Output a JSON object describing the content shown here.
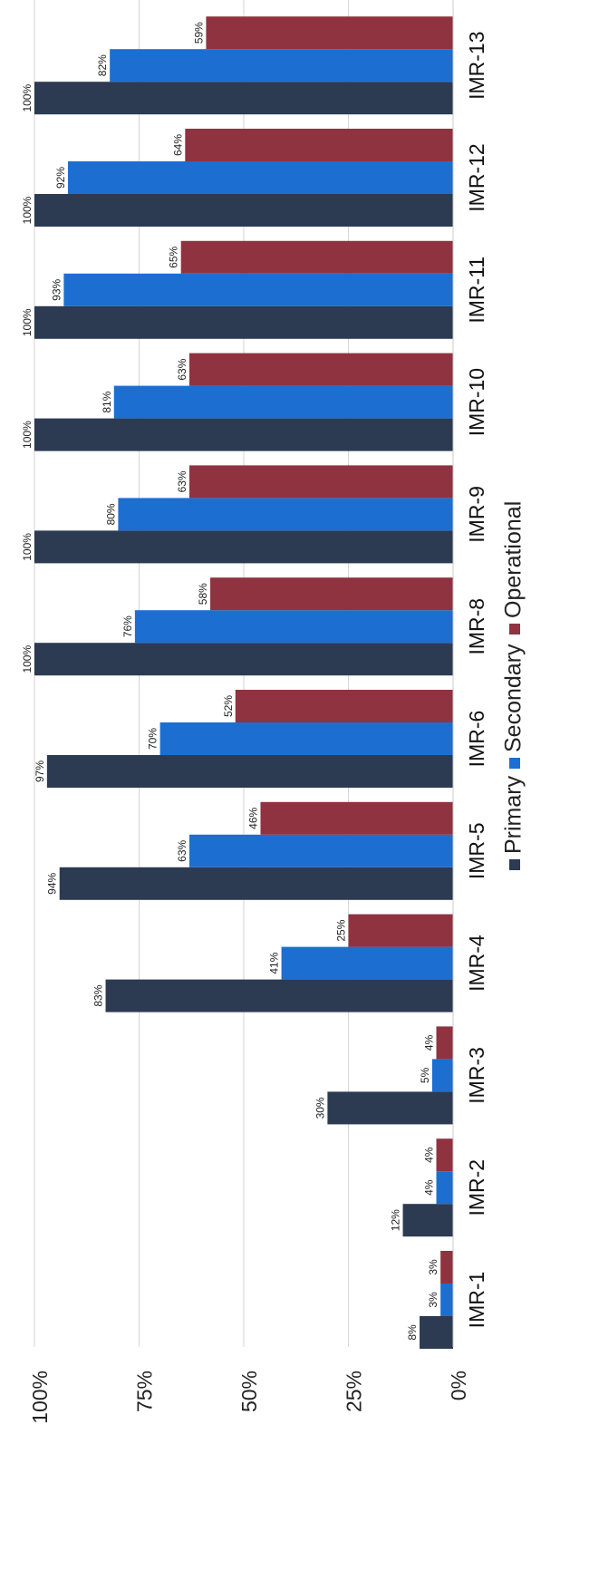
{
  "chart_data": {
    "type": "bar",
    "orientation": "rotated-vertical",
    "categories": [
      "IMR-1",
      "IMR-2",
      "IMR-3",
      "IMR-4",
      "IMR-5",
      "IMR-6",
      "IMR-8",
      "IMR-9",
      "IMR-10",
      "IMR-11",
      "IMR-12",
      "IMR-13"
    ],
    "series": [
      {
        "name": "Primary",
        "color": "#2c3a52",
        "values": [
          8,
          12,
          30,
          83,
          94,
          97,
          100,
          100,
          100,
          100,
          100,
          100
        ]
      },
      {
        "name": "Secondary",
        "color": "#1c6fd0",
        "values": [
          3,
          4,
          5,
          41,
          63,
          70,
          76,
          80,
          81,
          93,
          92,
          82
        ]
      },
      {
        "name": "Operational",
        "color": "#8f3340",
        "values": [
          3,
          4,
          4,
          25,
          46,
          52,
          58,
          63,
          63,
          65,
          64,
          59
        ]
      }
    ],
    "data_labels": {
      "Primary": [
        "8%",
        "12%",
        "30%",
        "83%",
        "94%",
        "97%",
        "100%",
        "100%",
        "100%",
        "100%",
        "100%",
        "100%"
      ],
      "Secondary": [
        "3%",
        "4%",
        "5%",
        "41%",
        "63%",
        "70%",
        "76%",
        "80%",
        "81%",
        "93%",
        "92%",
        "82%"
      ],
      "Operational": [
        "3%",
        "4%",
        "4%",
        "25%",
        "46%",
        "52%",
        "58%",
        "63%",
        "63%",
        "65%",
        "64%",
        "59%"
      ]
    },
    "value_ticks": [
      {
        "value": 0,
        "label": "0%"
      },
      {
        "value": 25,
        "label": "25%"
      },
      {
        "value": 50,
        "label": "50%"
      },
      {
        "value": 75,
        "label": "75%"
      },
      {
        "value": 100,
        "label": "100%"
      }
    ],
    "ylim": [
      0,
      100
    ],
    "grid": true,
    "legend": {
      "position": "bottom",
      "entries": [
        "Primary",
        "Secondary",
        "Operational"
      ]
    }
  }
}
